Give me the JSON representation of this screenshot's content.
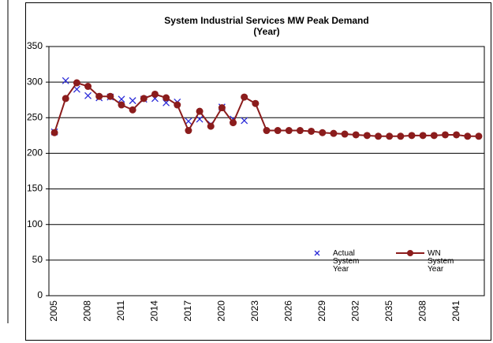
{
  "chart_data": {
    "type": "line",
    "title": "System Industrial Services MW Peak Demand",
    "subtitle": "(Year)",
    "categories": [
      "2005",
      null,
      null,
      "2008",
      null,
      null,
      "2011",
      null,
      null,
      "2014",
      null,
      null,
      "2017",
      null,
      null,
      "2020",
      null,
      null,
      "2023",
      null,
      null,
      "2026",
      null,
      null,
      "2029",
      null,
      null,
      "2032",
      null,
      null,
      "2035",
      null,
      null,
      "2038",
      null,
      null,
      "2041",
      null,
      null
    ],
    "series": [
      {
        "name": "Actual System Year",
        "color": "#2a2ad8",
        "marker": "x",
        "line": false,
        "values": [
          230,
          302,
          290,
          281,
          278,
          279,
          276,
          274,
          276,
          277,
          271,
          272,
          245,
          248,
          241,
          265,
          248,
          246,
          null,
          null,
          null,
          null,
          null,
          null,
          null,
          null,
          null,
          null,
          null,
          null,
          null,
          null,
          null,
          null,
          null,
          null,
          null,
          null,
          null
        ]
      },
      {
        "name": "WN System Year",
        "color": "#8b1c1c",
        "marker": "circle",
        "line": true,
        "values": [
          229,
          277,
          299,
          294,
          280,
          280,
          268,
          261,
          277,
          283,
          278,
          268,
          232,
          259,
          238,
          264,
          243,
          279,
          270,
          232,
          232,
          232,
          232,
          231,
          229,
          228,
          227,
          226,
          225,
          224,
          224,
          224,
          225,
          225,
          225,
          226,
          226,
          224,
          224
        ]
      }
    ],
    "ylim": [
      0,
      350
    ],
    "yticks": [
      0,
      50,
      100,
      150,
      200,
      250,
      300,
      350
    ],
    "grid": true
  }
}
